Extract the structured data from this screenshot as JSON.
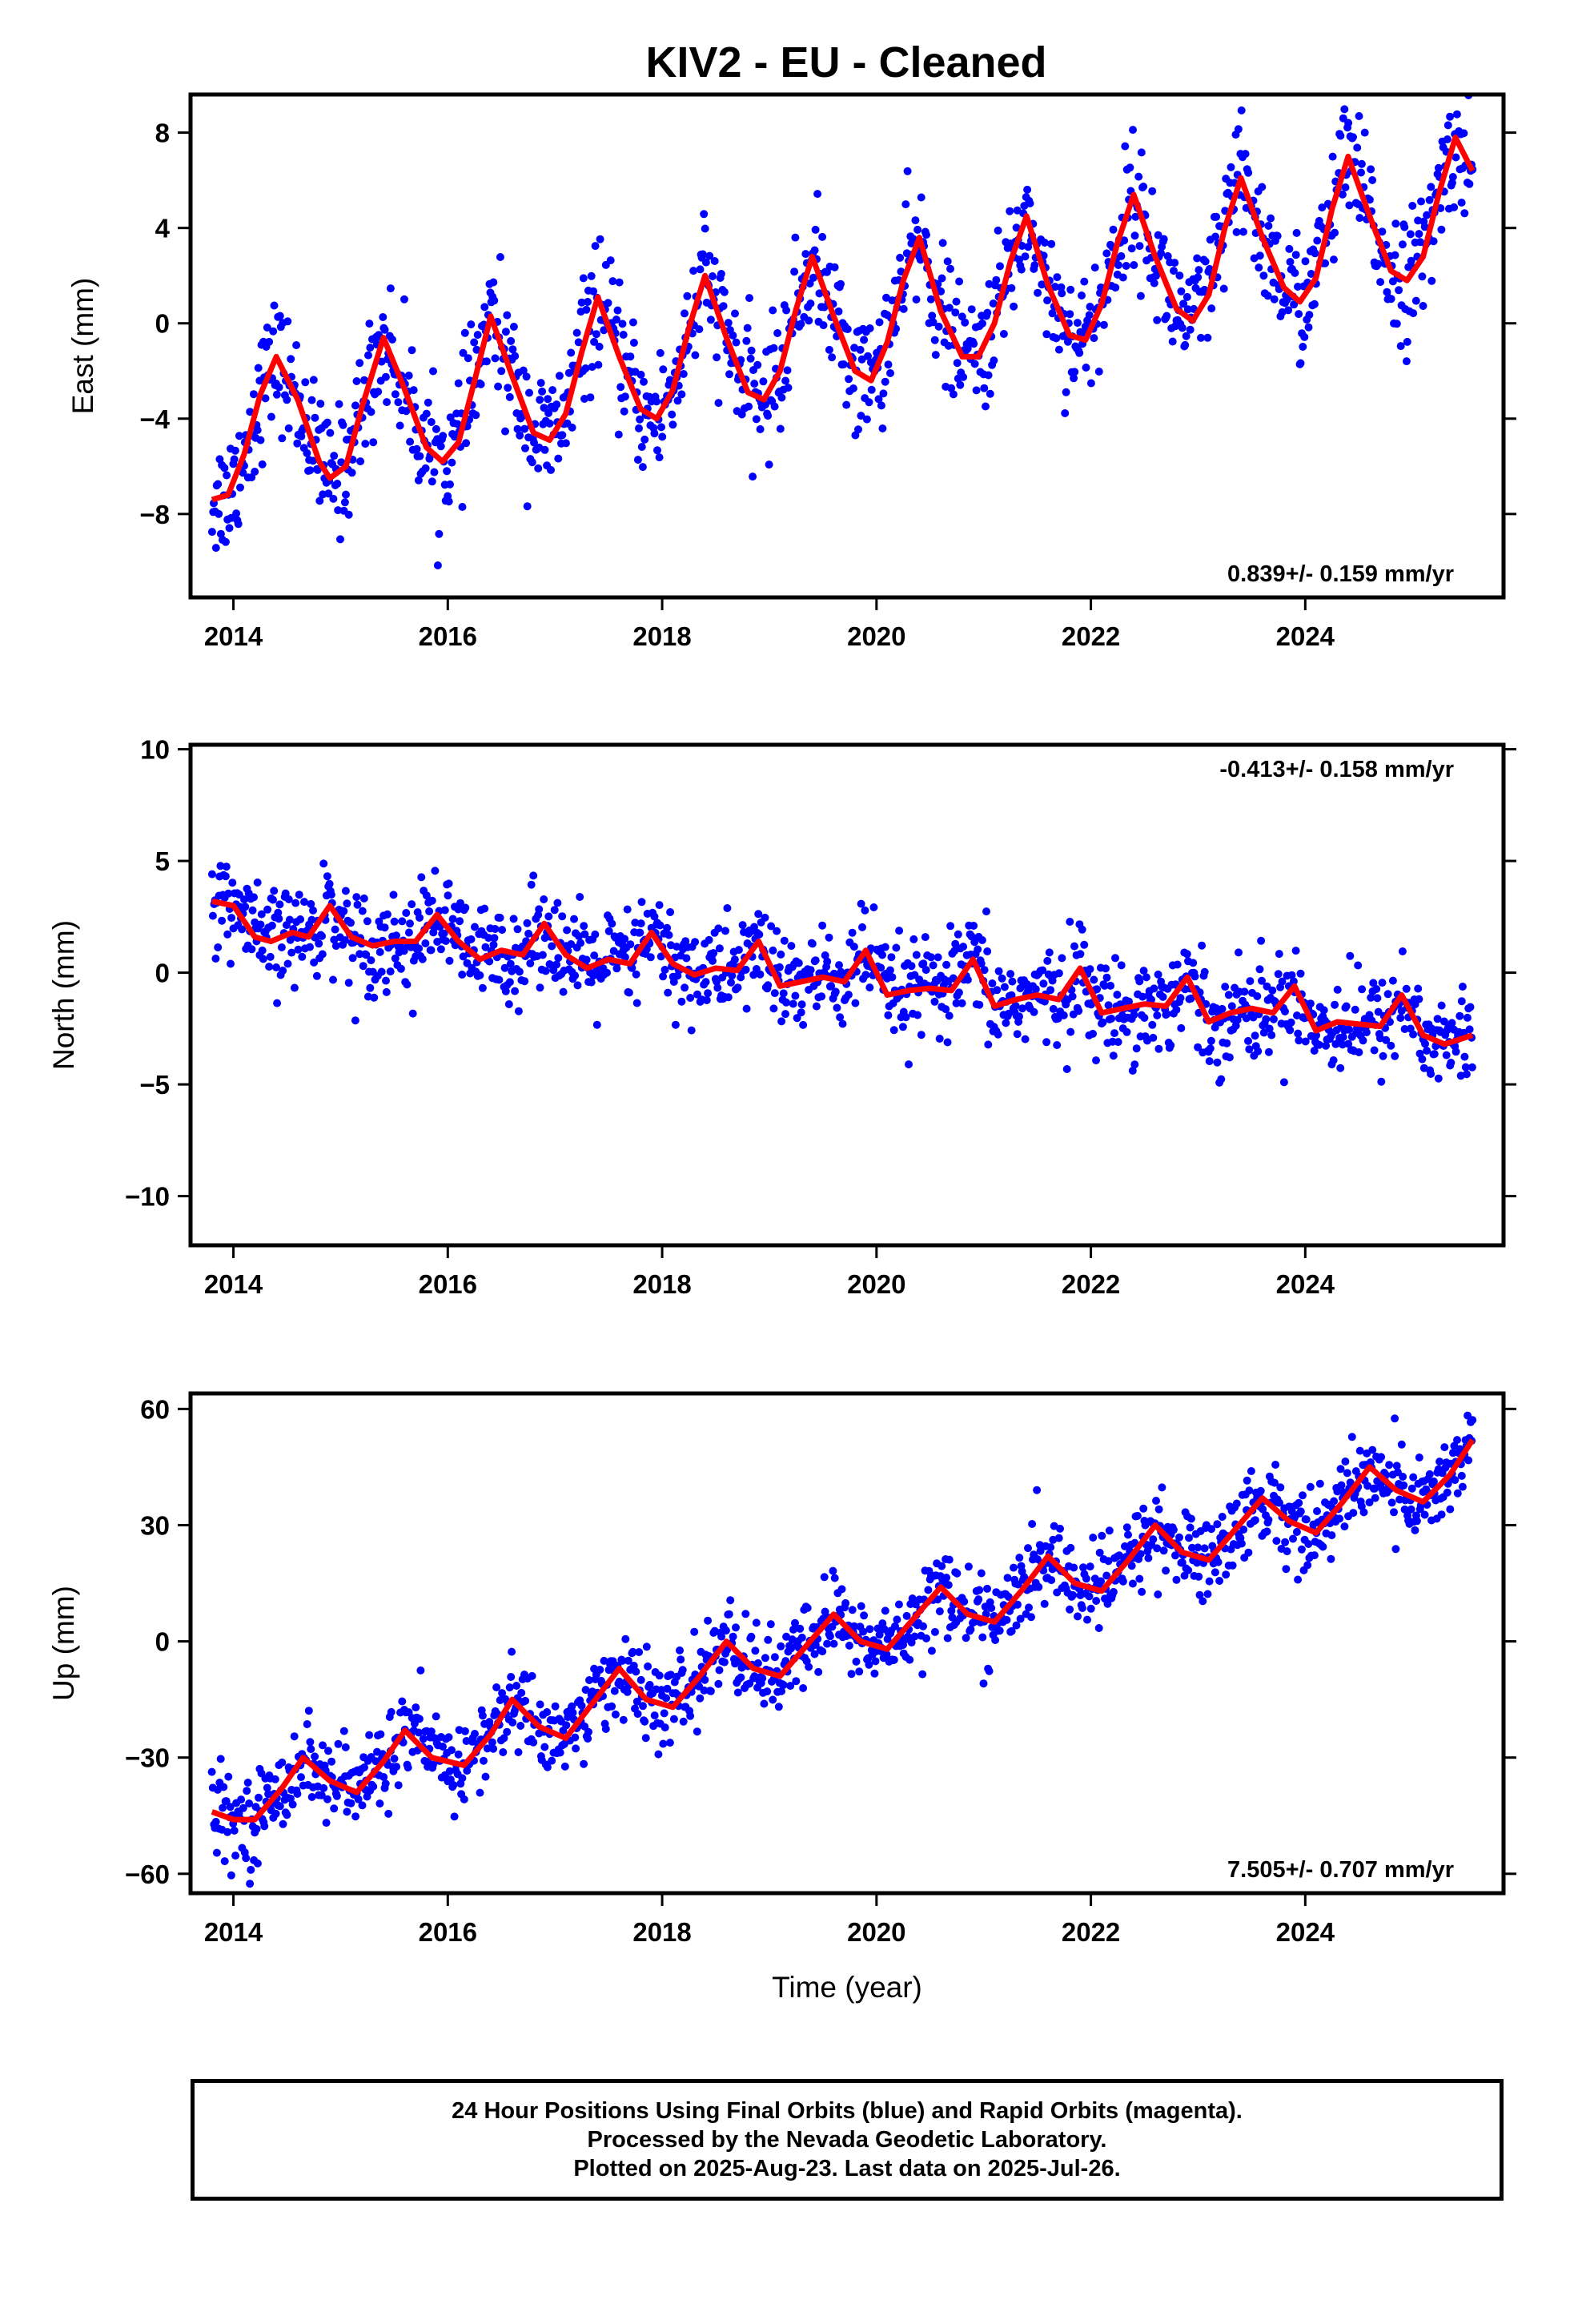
{
  "title": "KIV2  - EU - Cleaned",
  "colors": {
    "points": "#0000ff",
    "fit": "#ff0000",
    "frame": "#000000"
  },
  "footer": {
    "line1": "24 Hour Positions Using Final Orbits (blue) and Rapid Orbits (magenta).",
    "line2": "Processed by the Nevada Geodetic Laboratory.",
    "line3": "Plotted on 2025-Aug-23. Last data on 2025-Jul-26."
  },
  "chart_data": [
    {
      "type": "scatter",
      "component": "east",
      "ylabel": "East (mm)",
      "xlim": [
        2013.6,
        2025.85
      ],
      "ylim": [
        -11.5,
        9.6
      ],
      "x_ticks": [
        2014,
        2016,
        2018,
        2020,
        2022,
        2024
      ],
      "y_ticks": [
        -8,
        -4,
        0,
        4,
        8
      ],
      "rate_text": "0.839+/- 0.159 mm/yr",
      "rate_position": "bottom-right",
      "x_start": 2013.8,
      "x_end": 2025.56,
      "trend": [
        [
          2013.8,
          -7.4
        ],
        [
          2013.95,
          -7.2
        ],
        [
          2014.1,
          -5.5
        ],
        [
          2014.25,
          -3.0
        ],
        [
          2014.4,
          -1.4
        ],
        [
          2014.6,
          -3.2
        ],
        [
          2014.8,
          -5.8
        ],
        [
          2014.9,
          -6.5
        ],
        [
          2015.05,
          -6.0
        ],
        [
          2015.2,
          -3.5
        ],
        [
          2015.4,
          -0.6
        ],
        [
          2015.6,
          -2.8
        ],
        [
          2015.8,
          -5.2
        ],
        [
          2015.95,
          -5.8
        ],
        [
          2016.1,
          -5.0
        ],
        [
          2016.25,
          -2.4
        ],
        [
          2016.4,
          0.3
        ],
        [
          2016.6,
          -2.2
        ],
        [
          2016.8,
          -4.6
        ],
        [
          2016.95,
          -4.9
        ],
        [
          2017.1,
          -3.8
        ],
        [
          2017.25,
          -1.2
        ],
        [
          2017.4,
          1.1
        ],
        [
          2017.6,
          -1.4
        ],
        [
          2017.8,
          -3.6
        ],
        [
          2017.95,
          -4.0
        ],
        [
          2018.1,
          -2.8
        ],
        [
          2018.25,
          -0.2
        ],
        [
          2018.4,
          2.0
        ],
        [
          2018.6,
          -0.6
        ],
        [
          2018.8,
          -2.9
        ],
        [
          2018.95,
          -3.2
        ],
        [
          2019.1,
          -2.0
        ],
        [
          2019.25,
          0.6
        ],
        [
          2019.4,
          2.8
        ],
        [
          2019.6,
          0.3
        ],
        [
          2019.8,
          -2.0
        ],
        [
          2019.95,
          -2.4
        ],
        [
          2020.1,
          -0.8
        ],
        [
          2020.25,
          1.8
        ],
        [
          2020.4,
          3.6
        ],
        [
          2020.6,
          0.5
        ],
        [
          2020.8,
          -1.4
        ],
        [
          2020.95,
          -1.4
        ],
        [
          2021.1,
          0.0
        ],
        [
          2021.25,
          2.6
        ],
        [
          2021.4,
          4.5
        ],
        [
          2021.6,
          1.6
        ],
        [
          2021.8,
          -0.5
        ],
        [
          2021.95,
          -0.7
        ],
        [
          2022.1,
          0.8
        ],
        [
          2022.25,
          3.4
        ],
        [
          2022.4,
          5.4
        ],
        [
          2022.6,
          2.8
        ],
        [
          2022.8,
          0.6
        ],
        [
          2022.95,
          0.1
        ],
        [
          2023.1,
          1.2
        ],
        [
          2023.25,
          4.0
        ],
        [
          2023.4,
          6.1
        ],
        [
          2023.6,
          3.6
        ],
        [
          2023.8,
          1.5
        ],
        [
          2023.95,
          0.9
        ],
        [
          2024.1,
          1.9
        ],
        [
          2024.25,
          4.8
        ],
        [
          2024.4,
          7.0
        ],
        [
          2024.6,
          4.5
        ],
        [
          2024.8,
          2.2
        ],
        [
          2024.95,
          1.8
        ],
        [
          2025.1,
          2.8
        ],
        [
          2025.25,
          5.5
        ],
        [
          2025.4,
          7.8
        ],
        [
          2025.56,
          6.4
        ]
      ],
      "scatter_sd": 1.3
    },
    {
      "type": "scatter",
      "component": "north",
      "ylabel": "North (mm)",
      "xlim": [
        2013.6,
        2025.85
      ],
      "ylim": [
        -12.2,
        10.2
      ],
      "x_ticks": [
        2014,
        2016,
        2018,
        2020,
        2022,
        2024
      ],
      "y_ticks": [
        -10,
        -5,
        0,
        5,
        10
      ],
      "rate_text": "-0.413+/- 0.158 mm/yr",
      "rate_position": "top-right",
      "x_start": 2013.8,
      "x_end": 2025.56,
      "trend": [
        [
          2013.8,
          3.2
        ],
        [
          2014.0,
          3.0
        ],
        [
          2014.2,
          1.6
        ],
        [
          2014.35,
          1.4
        ],
        [
          2014.55,
          1.8
        ],
        [
          2014.7,
          1.6
        ],
        [
          2014.9,
          3.0
        ],
        [
          2015.1,
          1.6
        ],
        [
          2015.3,
          1.2
        ],
        [
          2015.5,
          1.4
        ],
        [
          2015.7,
          1.4
        ],
        [
          2015.9,
          2.6
        ],
        [
          2016.1,
          1.4
        ],
        [
          2016.3,
          0.6
        ],
        [
          2016.5,
          1.0
        ],
        [
          2016.7,
          0.8
        ],
        [
          2016.9,
          2.2
        ],
        [
          2017.1,
          0.8
        ],
        [
          2017.3,
          0.2
        ],
        [
          2017.5,
          0.6
        ],
        [
          2017.7,
          0.4
        ],
        [
          2017.9,
          1.8
        ],
        [
          2018.1,
          0.4
        ],
        [
          2018.3,
          -0.1
        ],
        [
          2018.5,
          0.2
        ],
        [
          2018.7,
          0.1
        ],
        [
          2018.9,
          1.4
        ],
        [
          2019.1,
          -0.6
        ],
        [
          2019.3,
          -0.4
        ],
        [
          2019.5,
          -0.2
        ],
        [
          2019.7,
          -0.4
        ],
        [
          2019.9,
          1.0
        ],
        [
          2020.1,
          -1.0
        ],
        [
          2020.3,
          -0.8
        ],
        [
          2020.5,
          -0.7
        ],
        [
          2020.7,
          -0.8
        ],
        [
          2020.9,
          0.6
        ],
        [
          2021.1,
          -1.5
        ],
        [
          2021.3,
          -1.2
        ],
        [
          2021.5,
          -1.0
        ],
        [
          2021.7,
          -1.2
        ],
        [
          2021.9,
          0.2
        ],
        [
          2022.1,
          -1.8
        ],
        [
          2022.3,
          -1.6
        ],
        [
          2022.5,
          -1.4
        ],
        [
          2022.7,
          -1.5
        ],
        [
          2022.9,
          -0.2
        ],
        [
          2023.1,
          -2.2
        ],
        [
          2023.3,
          -1.8
        ],
        [
          2023.5,
          -1.6
        ],
        [
          2023.7,
          -1.8
        ],
        [
          2023.9,
          -0.6
        ],
        [
          2024.1,
          -2.6
        ],
        [
          2024.3,
          -2.2
        ],
        [
          2024.5,
          -2.3
        ],
        [
          2024.7,
          -2.4
        ],
        [
          2024.9,
          -1.0
        ],
        [
          2025.1,
          -2.8
        ],
        [
          2025.3,
          -3.2
        ],
        [
          2025.56,
          -2.8
        ]
      ],
      "scatter_sd": 1.1
    },
    {
      "type": "scatter",
      "component": "up",
      "ylabel": "Up (mm)",
      "xlabel": "Time (year)",
      "xlim": [
        2013.6,
        2025.85
      ],
      "ylim": [
        -65,
        64
      ],
      "x_ticks": [
        2014,
        2016,
        2018,
        2020,
        2022,
        2024
      ],
      "y_ticks": [
        -60,
        -30,
        0,
        30,
        60
      ],
      "rate_text": "7.505+/- 0.707 mm/yr",
      "rate_position": "bottom-right",
      "x_start": 2013.8,
      "x_end": 2025.56,
      "trend": [
        [
          2013.8,
          -44
        ],
        [
          2014.0,
          -46
        ],
        [
          2014.2,
          -46
        ],
        [
          2014.45,
          -38
        ],
        [
          2014.65,
          -30
        ],
        [
          2014.9,
          -36
        ],
        [
          2015.15,
          -39
        ],
        [
          2015.4,
          -31
        ],
        [
          2015.6,
          -23
        ],
        [
          2015.85,
          -30
        ],
        [
          2016.15,
          -32
        ],
        [
          2016.4,
          -24
        ],
        [
          2016.6,
          -15
        ],
        [
          2016.85,
          -22
        ],
        [
          2017.1,
          -25
        ],
        [
          2017.35,
          -16
        ],
        [
          2017.6,
          -7
        ],
        [
          2017.85,
          -15
        ],
        [
          2018.1,
          -17
        ],
        [
          2018.35,
          -9
        ],
        [
          2018.6,
          0
        ],
        [
          2018.85,
          -7
        ],
        [
          2019.1,
          -9
        ],
        [
          2019.35,
          -1
        ],
        [
          2019.6,
          7
        ],
        [
          2019.85,
          0
        ],
        [
          2020.1,
          -2
        ],
        [
          2020.35,
          6
        ],
        [
          2020.6,
          14
        ],
        [
          2020.85,
          7
        ],
        [
          2021.1,
          5
        ],
        [
          2021.35,
          13
        ],
        [
          2021.6,
          22
        ],
        [
          2021.85,
          15
        ],
        [
          2022.1,
          13
        ],
        [
          2022.35,
          21
        ],
        [
          2022.6,
          30
        ],
        [
          2022.85,
          23
        ],
        [
          2023.1,
          21
        ],
        [
          2023.35,
          29
        ],
        [
          2023.6,
          37
        ],
        [
          2023.85,
          31
        ],
        [
          2024.1,
          28
        ],
        [
          2024.35,
          36
        ],
        [
          2024.6,
          45
        ],
        [
          2024.85,
          39
        ],
        [
          2025.1,
          36
        ],
        [
          2025.35,
          43
        ],
        [
          2025.56,
          52
        ]
      ],
      "scatter_sd": 5.5
    }
  ]
}
